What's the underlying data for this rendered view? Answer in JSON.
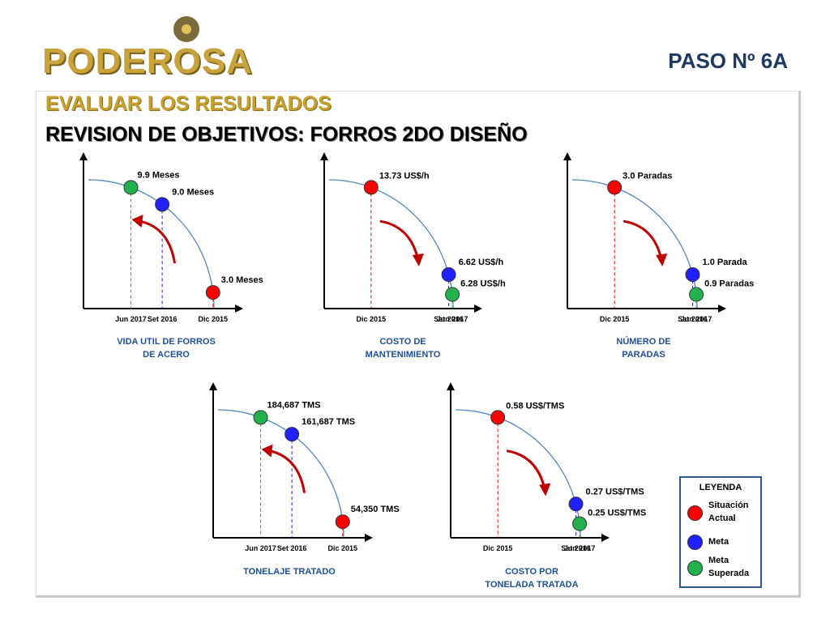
{
  "header": {
    "logo_text": "PODEROSA",
    "step": "PASO  Nº 6A",
    "title": "EVALUAR LOS RESULTADOS",
    "subtitle": "REVISION DE OBJETIVOS: FORROS 2DO DISEÑO"
  },
  "colors": {
    "actual": "#ff0000",
    "meta": "#1f1fff",
    "superada": "#22b14c",
    "curve": "#4f86c6",
    "arrow": "#c00000",
    "caption": "#1f4e99"
  },
  "legend": {
    "title": "LEYENDA",
    "items": [
      {
        "label": "Situación Actual",
        "status": "actual"
      },
      {
        "label": "Meta",
        "status": "meta"
      },
      {
        "label": "Meta Superada",
        "status": "superada"
      }
    ]
  },
  "chart_data": [
    {
      "type": "scatter",
      "title": "VIDA UTIL DE FORROS DE ACERO",
      "trend": "increase",
      "points": [
        {
          "x": "Jun 2017",
          "label": "9.9 Meses",
          "value": 9.9,
          "status": "superada"
        },
        {
          "x": "Set 2016",
          "label": "9.0 Meses",
          "value": 9.0,
          "status": "meta"
        },
        {
          "x": "Dic 2015",
          "label": "3.0 Meses",
          "value": 3.0,
          "status": "actual"
        }
      ]
    },
    {
      "type": "scatter",
      "title": "COSTO DE MANTENIMIENTO",
      "trend": "decrease",
      "points": [
        {
          "x": "Dic 2015",
          "label": "13.73  US$/h",
          "value": 13.73,
          "status": "actual"
        },
        {
          "x": "Set 2016",
          "label": "6.62  US$/h",
          "value": 6.62,
          "status": "meta"
        },
        {
          "x": "Jun 2017",
          "label": "6.28  US$/h",
          "value": 6.28,
          "status": "superada"
        }
      ]
    },
    {
      "type": "scatter",
      "title": "NÚMERO DE PARADAS",
      "trend": "decrease",
      "points": [
        {
          "x": "Dic 2015",
          "label": "3.0 Paradas",
          "value": 3.0,
          "status": "actual"
        },
        {
          "x": "Set 2016",
          "label": "1.0 Parada",
          "value": 1.0,
          "status": "meta"
        },
        {
          "x": "Jun 2017",
          "label": "0.9 Paradas",
          "value": 0.9,
          "status": "superada"
        }
      ]
    },
    {
      "type": "scatter",
      "title": "TONELAJE TRATADO",
      "trend": "increase",
      "points": [
        {
          "x": "Jun 2017",
          "label": "184,687  TMS",
          "value": 184687,
          "status": "superada"
        },
        {
          "x": "Set 2016",
          "label": "161,687  TMS",
          "value": 161687,
          "status": "meta"
        },
        {
          "x": "Dic 2015",
          "label": "54,350  TMS",
          "value": 54350,
          "status": "actual"
        }
      ]
    },
    {
      "type": "scatter",
      "title": "COSTO POR TONELADA TRATADA",
      "trend": "decrease",
      "points": [
        {
          "x": "Dic 2015",
          "label": "0.58  US$/TMS",
          "value": 0.58,
          "status": "actual"
        },
        {
          "x": "Set 2016",
          "label": "0.27  US$/TMS",
          "value": 0.27,
          "status": "meta"
        },
        {
          "x": "Jun 2017",
          "label": "0.25  US$/TMS",
          "value": 0.25,
          "status": "superada"
        }
      ]
    }
  ]
}
